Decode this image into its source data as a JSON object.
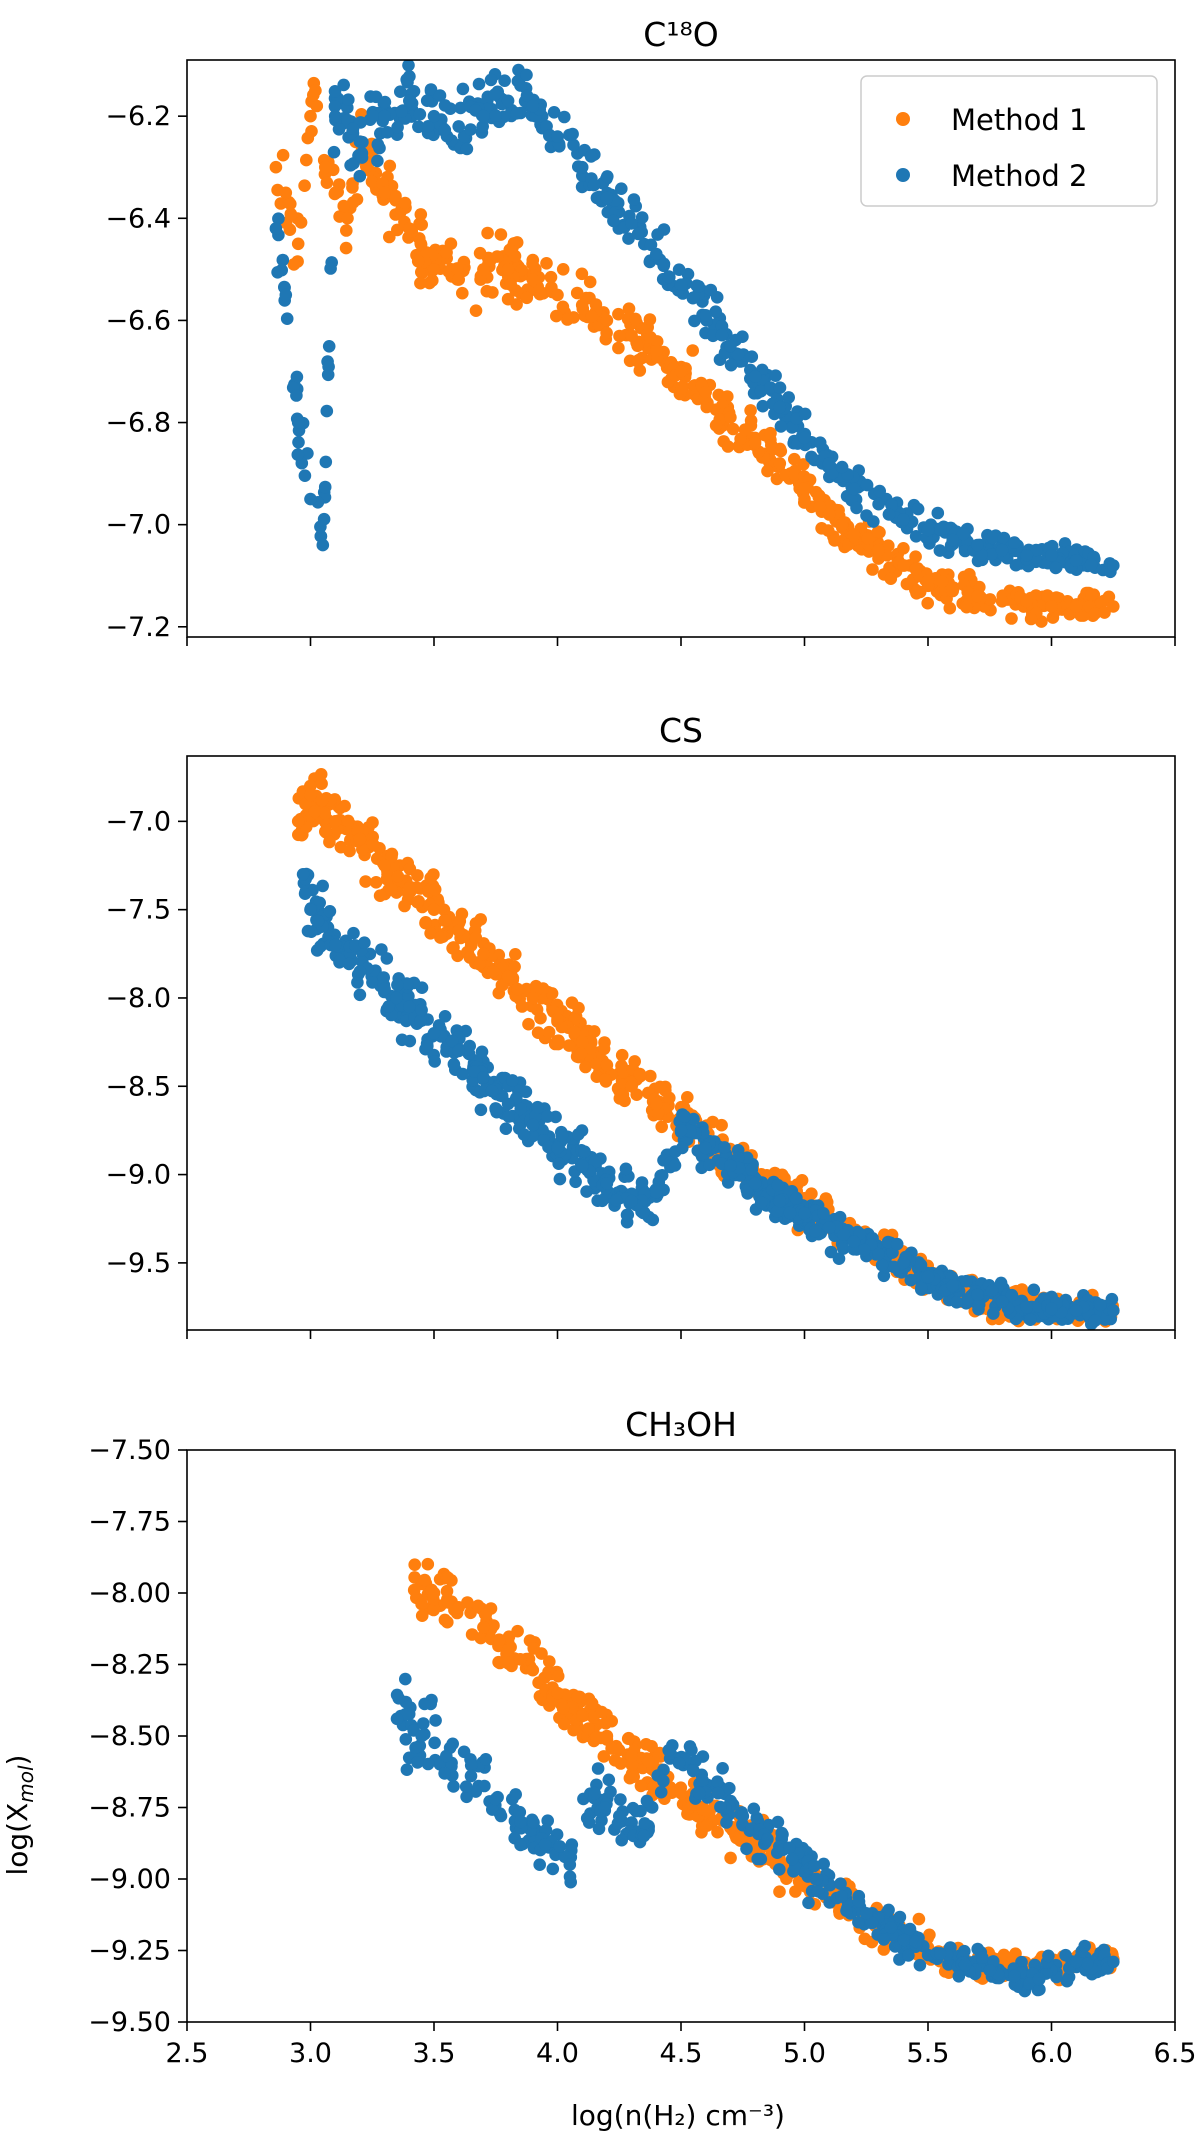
{
  "figure": {
    "xlabel": "log(n(H₂) cm⁻³)",
    "ylabel": "log(X",
    "ylabel_sub": "mol",
    "ylabel_close": ")",
    "legend": {
      "position": "top-right",
      "entries": [
        "Method 1",
        "Method 2"
      ]
    }
  },
  "colors": {
    "method1": "#ff7f0e",
    "method2": "#1f77b4"
  },
  "chart_data": [
    {
      "type": "scatter",
      "title": "C¹⁸O",
      "xlim": [
        2.5,
        6.5
      ],
      "ylim": [
        -7.22,
        -6.09
      ],
      "xticks": [
        2.5,
        3.0,
        3.5,
        4.0,
        4.5,
        5.0,
        5.5,
        6.0,
        6.5
      ],
      "yticks": [
        -6.2,
        -6.4,
        -6.6,
        -6.8,
        -7.0,
        -7.2
      ],
      "ytick_labels": [
        "−6.2",
        "−6.4",
        "−6.6",
        "−6.8",
        "−7.0",
        "−7.2"
      ],
      "series": [
        {
          "name": "Method 1",
          "color": "#ff7f0e",
          "x": [
            2.86,
            2.9,
            2.95,
            3.0,
            3.02,
            3.06,
            3.1,
            3.15,
            3.2,
            3.3,
            3.4,
            3.5,
            3.6,
            3.7,
            3.8,
            3.9,
            4.0,
            4.1,
            4.2,
            4.3,
            4.4,
            4.5,
            4.6,
            4.7,
            4.8,
            4.9,
            5.0,
            5.1,
            5.2,
            5.3,
            5.4,
            5.5,
            5.6,
            5.7,
            5.8,
            5.9,
            6.0,
            6.1,
            6.25
          ],
          "y": [
            -6.3,
            -6.35,
            -6.45,
            -6.2,
            -6.15,
            -6.3,
            -6.35,
            -6.4,
            -6.25,
            -6.35,
            -6.42,
            -6.5,
            -6.52,
            -6.5,
            -6.5,
            -6.52,
            -6.55,
            -6.57,
            -6.6,
            -6.63,
            -6.66,
            -6.7,
            -6.74,
            -6.79,
            -6.84,
            -6.88,
            -6.93,
            -6.98,
            -7.02,
            -7.05,
            -7.08,
            -7.11,
            -7.13,
            -7.14,
            -7.15,
            -7.15,
            -7.16,
            -7.16,
            -7.16
          ]
        },
        {
          "name": "Method 2",
          "color": "#1f77b4",
          "x": [
            2.86,
            2.9,
            2.95,
            3.0,
            3.05,
            3.1,
            3.2,
            3.3,
            3.4,
            3.5,
            3.6,
            3.7,
            3.8,
            3.85,
            3.9,
            4.0,
            4.1,
            4.2,
            4.3,
            4.4,
            4.5,
            4.6,
            4.7,
            4.8,
            4.9,
            5.0,
            5.1,
            5.2,
            5.3,
            5.4,
            5.5,
            5.6,
            5.7,
            5.8,
            5.9,
            6.0,
            6.1,
            6.25
          ],
          "y": [
            -6.42,
            -6.55,
            -6.8,
            -6.95,
            -7.04,
            -6.2,
            -6.25,
            -6.2,
            -6.17,
            -6.2,
            -6.22,
            -6.2,
            -6.17,
            -6.14,
            -6.18,
            -6.24,
            -6.3,
            -6.36,
            -6.41,
            -6.47,
            -6.53,
            -6.59,
            -6.65,
            -6.71,
            -6.77,
            -6.83,
            -6.88,
            -6.93,
            -6.96,
            -6.99,
            -7.01,
            -7.03,
            -7.04,
            -7.05,
            -7.06,
            -7.06,
            -7.07,
            -7.08
          ]
        }
      ]
    },
    {
      "type": "scatter",
      "title": "CS",
      "xlim": [
        2.5,
        6.5
      ],
      "ylim": [
        -9.88,
        -6.63
      ],
      "xticks": [
        2.5,
        3.0,
        3.5,
        4.0,
        4.5,
        5.0,
        5.5,
        6.0,
        6.5
      ],
      "yticks": [
        -7.0,
        -7.5,
        -8.0,
        -8.5,
        -9.0,
        -9.5
      ],
      "ytick_labels": [
        "−7.0",
        "−7.5",
        "−8.0",
        "−8.5",
        "−9.0",
        "−9.5"
      ],
      "series": [
        {
          "name": "Method 1",
          "color": "#ff7f0e",
          "x": [
            2.95,
            3.0,
            3.1,
            3.2,
            3.3,
            3.4,
            3.5,
            3.6,
            3.7,
            3.8,
            3.9,
            4.0,
            4.1,
            4.2,
            4.3,
            4.4,
            4.5,
            4.6,
            4.7,
            4.8,
            4.9,
            5.0,
            5.1,
            5.2,
            5.3,
            5.4,
            5.5,
            5.6,
            5.7,
            5.8,
            5.9,
            6.0,
            6.1,
            6.25
          ],
          "y": [
            -7.0,
            -6.85,
            -7.0,
            -7.1,
            -7.25,
            -7.38,
            -7.5,
            -7.62,
            -7.75,
            -7.88,
            -8.0,
            -8.12,
            -8.25,
            -8.38,
            -8.5,
            -8.6,
            -8.7,
            -8.8,
            -8.9,
            -9.0,
            -9.1,
            -9.18,
            -9.27,
            -9.35,
            -9.42,
            -9.5,
            -9.58,
            -9.63,
            -9.68,
            -9.72,
            -9.75,
            -9.76,
            -9.77,
            -9.77
          ]
        },
        {
          "name": "Method 2",
          "color": "#1f77b4",
          "x": [
            2.97,
            3.0,
            3.1,
            3.2,
            3.3,
            3.4,
            3.5,
            3.6,
            3.7,
            3.8,
            3.9,
            4.0,
            4.1,
            4.2,
            4.3,
            4.4,
            4.5,
            4.6,
            4.7,
            4.8,
            4.9,
            5.0,
            5.1,
            5.2,
            5.3,
            5.4,
            5.5,
            5.6,
            5.7,
            5.8,
            5.9,
            6.0,
            6.1,
            6.25
          ],
          "y": [
            -7.3,
            -7.5,
            -7.7,
            -7.85,
            -7.95,
            -8.05,
            -8.2,
            -8.3,
            -8.45,
            -8.6,
            -8.72,
            -8.85,
            -8.95,
            -9.05,
            -9.15,
            -9.1,
            -8.75,
            -8.85,
            -8.95,
            -9.05,
            -9.15,
            -9.22,
            -9.3,
            -9.38,
            -9.45,
            -9.5,
            -9.58,
            -9.63,
            -9.68,
            -9.72,
            -9.75,
            -9.76,
            -9.77,
            -9.77
          ]
        }
      ]
    },
    {
      "type": "scatter",
      "title": "CH₃OH",
      "xlabel": "log(n(H₂) cm⁻³)",
      "ylabel": "log(X_mol)",
      "xlim": [
        2.5,
        6.5
      ],
      "ylim": [
        -9.5,
        -7.5
      ],
      "xticks": [
        2.5,
        3.0,
        3.5,
        4.0,
        4.5,
        5.0,
        5.5,
        6.0,
        6.5
      ],
      "xtick_labels": [
        "2.5",
        "3.0",
        "3.5",
        "4.0",
        "4.5",
        "5.0",
        "5.5",
        "6.0",
        "6.5"
      ],
      "yticks": [
        -7.5,
        -7.75,
        -8.0,
        -8.25,
        -8.5,
        -8.75,
        -9.0,
        -9.25,
        -9.5
      ],
      "ytick_labels": [
        "−7.50",
        "−7.75",
        "−8.00",
        "−8.25",
        "−8.50",
        "−8.75",
        "−9.00",
        "−9.25",
        "−9.50"
      ],
      "series": [
        {
          "name": "Method 1",
          "color": "#ff7f0e",
          "x": [
            3.42,
            3.5,
            3.6,
            3.7,
            3.8,
            3.9,
            4.0,
            4.1,
            4.2,
            4.3,
            4.4,
            4.5,
            4.6,
            4.7,
            4.8,
            4.9,
            5.0,
            5.1,
            5.2,
            5.3,
            5.4,
            5.5,
            5.6,
            5.7,
            5.8,
            5.9,
            6.0,
            6.1,
            6.25
          ],
          "y": [
            -7.99,
            -8.0,
            -8.05,
            -8.12,
            -8.2,
            -8.27,
            -8.35,
            -8.43,
            -8.5,
            -8.57,
            -8.63,
            -8.7,
            -8.76,
            -8.82,
            -8.88,
            -8.94,
            -9.0,
            -9.06,
            -9.11,
            -9.16,
            -9.2,
            -9.24,
            -9.27,
            -9.29,
            -9.3,
            -9.31,
            -9.32,
            -9.28,
            -9.28
          ]
        },
        {
          "name": "Method 2",
          "color": "#1f77b4",
          "x": [
            3.35,
            3.45,
            3.55,
            3.65,
            3.75,
            3.85,
            3.95,
            4.05,
            4.15,
            4.25,
            4.35,
            4.45,
            4.55,
            4.65,
            4.75,
            4.85,
            4.95,
            5.05,
            5.15,
            5.25,
            5.35,
            5.45,
            5.55,
            5.65,
            5.75,
            5.85,
            5.95,
            6.1,
            6.25
          ],
          "y": [
            -8.44,
            -8.5,
            -8.57,
            -8.64,
            -8.72,
            -8.8,
            -8.88,
            -8.95,
            -8.7,
            -8.78,
            -8.85,
            -8.55,
            -8.62,
            -8.7,
            -8.78,
            -8.86,
            -8.93,
            -9.0,
            -9.06,
            -9.12,
            -9.17,
            -9.22,
            -9.26,
            -9.3,
            -9.32,
            -9.34,
            -9.35,
            -9.29,
            -9.29
          ]
        }
      ]
    }
  ]
}
